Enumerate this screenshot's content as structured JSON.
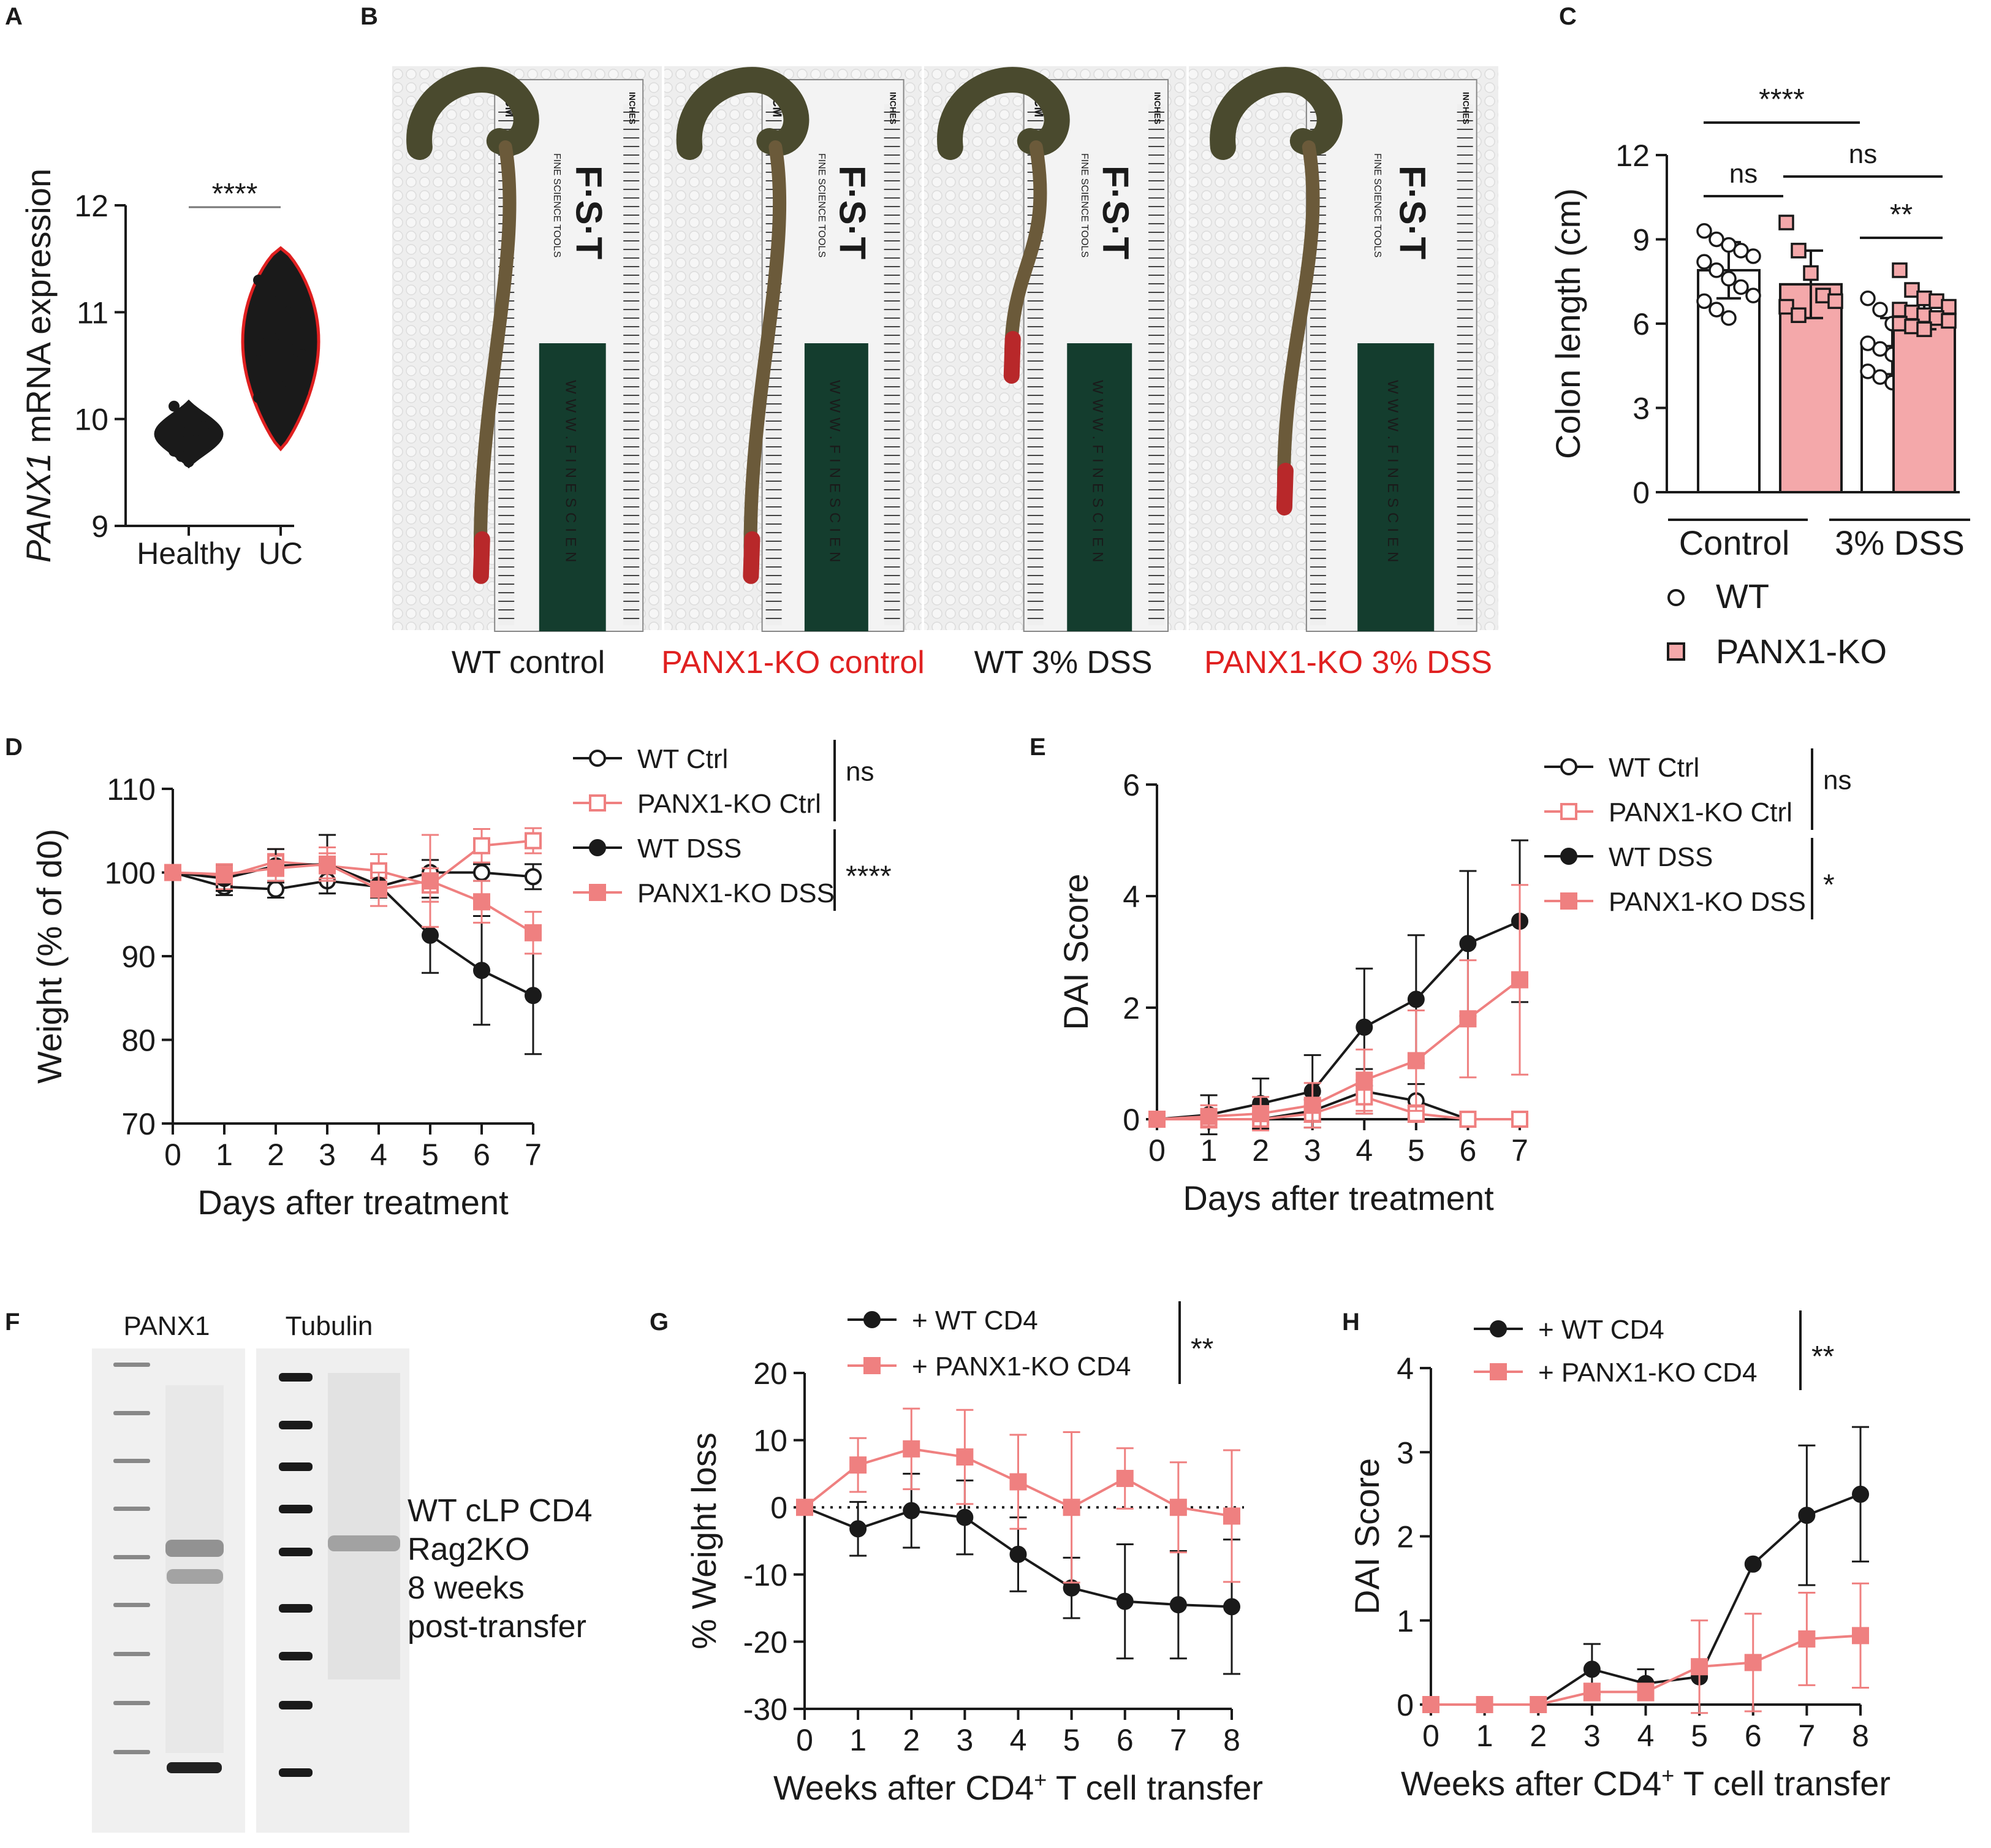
{
  "panels": {
    "A": {
      "label": "A"
    },
    "B": {
      "label": "B",
      "captions": [
        "WT control",
        "PANX1-KO control",
        "WT 3% DSS",
        "PANX1-KO 3% DSS"
      ],
      "ruler": {
        "cm": "CM",
        "inches": "INCHES",
        "brand": "F·S·T",
        "sub": "FINE SCIENCE TOOLS",
        "url": "WWW.FINESCIEN"
      }
    },
    "C": {
      "label": "C"
    },
    "D": {
      "label": "D"
    },
    "E": {
      "label": "E"
    },
    "F": {
      "label": "F",
      "blot_labels": [
        "PANX1",
        "Tubulin"
      ],
      "note_lines": [
        "WT cLP CD4",
        "Rag2KO",
        "8 weeks",
        "post-transfer"
      ]
    },
    "G": {
      "label": "G"
    },
    "H": {
      "label": "H"
    }
  },
  "colors": {
    "black": "#1a1a1a",
    "pink": "#ef8080",
    "pink_fill": "#f4a8aa",
    "red_text": "#e02020"
  },
  "chart_data": [
    {
      "id": "A",
      "type": "violin",
      "categories": [
        "Healthy",
        "UC"
      ],
      "ylabel_italic": "PANX1",
      "ylabel_rest": " mRNA expression",
      "ylim": [
        9,
        12
      ],
      "yticks": [
        "9",
        "10",
        "11",
        "12"
      ],
      "significance": "****",
      "series": [
        {
          "name": "Healthy",
          "values": [
            10.12,
            10.05,
            10.0,
            9.95,
            9.92,
            9.9,
            9.88,
            9.85,
            9.8,
            9.75,
            9.7,
            9.65,
            9.6,
            9.9,
            9.93
          ]
        },
        {
          "name": "UC",
          "values": [
            11.3,
            11.2,
            11.1,
            11.05,
            11.0,
            10.95,
            10.9,
            10.85,
            10.8,
            10.75,
            10.7,
            10.7,
            10.65,
            10.6,
            10.55,
            10.5,
            10.45,
            10.4,
            10.35,
            10.3,
            10.25,
            10.2,
            10.1,
            10.05,
            10.0,
            10.75,
            10.85,
            10.6
          ]
        }
      ]
    },
    {
      "id": "C",
      "type": "bar",
      "ylabel": "Colon length (cm)",
      "ylim": [
        0,
        12
      ],
      "yticks": [
        "0",
        "3",
        "6",
        "9",
        "12"
      ],
      "groups": [
        "Control",
        "3% DSS"
      ],
      "legend": [
        "WT",
        "PANX1-KO"
      ],
      "bars": [
        {
          "group": "Control",
          "genotype": "WT",
          "mean": 7.9,
          "sd": 1.0,
          "points": [
            9.3,
            9.0,
            8.8,
            8.6,
            8.4,
            8.2,
            7.9,
            7.6,
            7.3,
            7.0,
            6.8,
            6.5,
            6.2
          ]
        },
        {
          "group": "Control",
          "genotype": "PANX1-KO",
          "mean": 7.4,
          "sd": 1.2,
          "points": [
            9.6,
            8.6,
            7.8,
            7.0,
            6.8,
            6.6,
            6.3
          ]
        },
        {
          "group": "3% DSS",
          "genotype": "WT",
          "mean": 5.2,
          "sd": 1.0,
          "points": [
            6.9,
            6.5,
            6.0,
            5.8,
            5.6,
            5.3,
            5.1,
            4.9,
            4.7,
            4.5,
            4.3,
            4.1,
            3.9,
            3.3
          ]
        },
        {
          "group": "3% DSS",
          "genotype": "PANX1-KO",
          "mean": 6.4,
          "sd": 0.6,
          "points": [
            7.9,
            7.2,
            6.9,
            6.8,
            6.6,
            6.5,
            6.4,
            6.3,
            6.2,
            6.1,
            6.0,
            5.9,
            5.8
          ]
        }
      ],
      "comparisons": [
        {
          "text": "****",
          "from": 0,
          "to": 2
        },
        {
          "text": "ns",
          "from": 0,
          "to": 1
        },
        {
          "text": "ns",
          "from": 1,
          "to": 3
        },
        {
          "text": "**",
          "from": 2,
          "to": 3
        }
      ]
    },
    {
      "id": "D",
      "type": "line",
      "xlabel": "Days after treatment",
      "ylabel": "Weight (% of d0)",
      "x": [
        0,
        1,
        2,
        3,
        4,
        5,
        6,
        7
      ],
      "ylim": [
        70,
        110
      ],
      "xticks": [
        "0",
        "1",
        "2",
        "3",
        "4",
        "5",
        "6",
        "7"
      ],
      "yticks": [
        "70",
        "80",
        "90",
        "100",
        "110"
      ],
      "series": [
        {
          "name": "WT Ctrl",
          "marker": "circle-open",
          "color": "#1a1a1a",
          "values": [
            100,
            98.3,
            98.0,
            99.0,
            98.3,
            100.0,
            100.0,
            99.5
          ],
          "err": [
            0.5,
            1.0,
            1.0,
            1.5,
            1.0,
            1.5,
            1.0,
            1.5
          ]
        },
        {
          "name": "PANX1-KO Ctrl",
          "marker": "square-open",
          "color": "#ef8080",
          "values": [
            100,
            99.5,
            101.3,
            100.8,
            100.2,
            98.5,
            103.2,
            103.8
          ],
          "err": [
            0.5,
            1.5,
            1.5,
            1.5,
            2.0,
            2.0,
            2.0,
            1.5
          ]
        },
        {
          "name": "WT DSS",
          "marker": "circle-filled",
          "color": "#1a1a1a",
          "values": [
            100,
            99.3,
            100.8,
            101.0,
            98.5,
            92.5,
            88.3,
            85.3
          ],
          "err": [
            0.5,
            1.5,
            2.0,
            3.5,
            1.5,
            4.5,
            6.5,
            7.0
          ]
        },
        {
          "name": "PANX1-KO DSS",
          "marker": "square-filled",
          "color": "#ef8080",
          "values": [
            100,
            99.8,
            100.5,
            101.0,
            98.0,
            99.0,
            96.5,
            92.8
          ],
          "err": [
            0.5,
            1.0,
            1.5,
            2.0,
            2.0,
            5.5,
            2.5,
            2.5
          ]
        }
      ],
      "annotations": [
        {
          "text": "ns",
          "series": [
            0,
            1
          ]
        },
        {
          "text": "****",
          "series": [
            2,
            3
          ]
        }
      ]
    },
    {
      "id": "E",
      "type": "line",
      "xlabel": "Days after treatment",
      "ylabel": "DAI Score",
      "x": [
        0,
        1,
        2,
        3,
        4,
        5,
        6,
        7
      ],
      "ylim": [
        0,
        6
      ],
      "xticks": [
        "0",
        "1",
        "2",
        "3",
        "4",
        "5",
        "6",
        "7"
      ],
      "yticks": [
        "0",
        "2",
        "4",
        "6"
      ],
      "series": [
        {
          "name": "WT Ctrl",
          "marker": "circle-open",
          "color": "#1a1a1a",
          "values": [
            0,
            0,
            0,
            0.15,
            0.5,
            0.33,
            0,
            0
          ],
          "err": [
            0,
            0,
            0,
            0.2,
            0.4,
            0.3,
            0,
            0
          ]
        },
        {
          "name": "PANX1-KO Ctrl",
          "marker": "square-open",
          "color": "#ef8080",
          "values": [
            0,
            0,
            0,
            0.1,
            0.4,
            0.1,
            0,
            0
          ],
          "err": [
            0,
            0,
            0,
            0.15,
            0.3,
            0.15,
            0,
            0
          ]
        },
        {
          "name": "WT DSS",
          "marker": "circle-filled",
          "color": "#1a1a1a",
          "values": [
            0,
            0.08,
            0.28,
            0.5,
            1.65,
            2.15,
            3.15,
            3.55
          ],
          "err": [
            0,
            0.35,
            0.45,
            0.65,
            1.05,
            1.15,
            1.3,
            1.45
          ]
        },
        {
          "name": "PANX1-KO DSS",
          "marker": "square-filled",
          "color": "#ef8080",
          "values": [
            0,
            0.05,
            0.1,
            0.25,
            0.7,
            1.05,
            1.8,
            2.5
          ],
          "err": [
            0,
            0.2,
            0.3,
            0.4,
            0.55,
            0.9,
            1.05,
            1.7
          ]
        }
      ],
      "annotations": [
        {
          "text": "ns",
          "series": [
            0,
            1
          ]
        },
        {
          "text": "*",
          "series": [
            2,
            3
          ]
        }
      ]
    },
    {
      "id": "G",
      "type": "line",
      "xlabel": "Weeks after CD4",
      "xlabel_sup": "+",
      "xlabel_end": " T cell transfer",
      "ylabel": "% Weight loss",
      "x": [
        0,
        1,
        2,
        3,
        4,
        5,
        6,
        7,
        8
      ],
      "ylim": [
        -30,
        20
      ],
      "xticks": [
        "0",
        "1",
        "2",
        "3",
        "4",
        "5",
        "6",
        "7",
        "8"
      ],
      "yticks": [
        "-30",
        "-20",
        "-10",
        "0",
        "10",
        "20"
      ],
      "zero_line": "dotted",
      "series": [
        {
          "name": "+ WT CD4",
          "marker": "circle-filled",
          "color": "#1a1a1a",
          "values": [
            0,
            -3.2,
            -0.5,
            -1.5,
            -7.0,
            -12.0,
            -14.0,
            -14.5,
            -14.8
          ],
          "err": [
            0,
            4.0,
            5.5,
            5.5,
            5.5,
            4.5,
            8.5,
            8.0,
            10.0
          ]
        },
        {
          "name": "+ PANX1-KO CD4",
          "marker": "square-filled",
          "color": "#ef8080",
          "values": [
            0,
            6.3,
            8.7,
            7.5,
            3.8,
            0,
            4.3,
            0,
            -1.3
          ],
          "err": [
            0,
            4.0,
            6.0,
            7.0,
            7.0,
            11.2,
            4.5,
            6.7,
            9.8
          ]
        }
      ],
      "annotations": [
        {
          "text": "**",
          "series": [
            0,
            1
          ]
        }
      ]
    },
    {
      "id": "H",
      "type": "line",
      "xlabel": "Weeks after CD4",
      "xlabel_sup": "+",
      "xlabel_end": " T cell transfer",
      "ylabel": "DAI Score",
      "x": [
        0,
        1,
        2,
        3,
        4,
        5,
        6,
        7,
        8
      ],
      "ylim": [
        0,
        4
      ],
      "xticks": [
        "0",
        "1",
        "2",
        "3",
        "4",
        "5",
        "6",
        "7",
        "8"
      ],
      "yticks": [
        "0",
        "1",
        "2",
        "3",
        "4"
      ],
      "series": [
        {
          "name": "+ WT CD4",
          "marker": "circle-filled",
          "color": "#1a1a1a",
          "values": [
            0,
            0,
            0,
            0.42,
            0.25,
            0.33,
            1.67,
            2.25,
            2.5
          ],
          "err": [
            0,
            0,
            0,
            0.3,
            0.17,
            0.0,
            0,
            0.83,
            0.8
          ]
        },
        {
          "name": "+ PANX1-KO CD4",
          "marker": "square-filled",
          "color": "#ef8080",
          "values": [
            0,
            0,
            0,
            0.15,
            0.15,
            0.45,
            0.5,
            0.78,
            0.82
          ],
          "err": [
            0,
            0,
            0,
            0.1,
            0.1,
            0.55,
            0.58,
            0.55,
            0.62
          ]
        }
      ],
      "annotations": [
        {
          "text": "**",
          "series": [
            0,
            1
          ]
        }
      ]
    }
  ]
}
